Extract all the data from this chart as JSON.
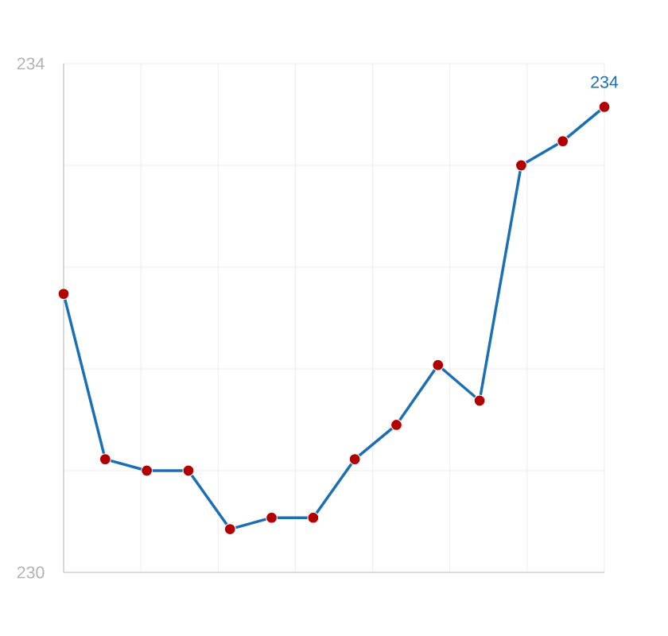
{
  "chart_data": {
    "type": "line",
    "categories": [
      null,
      null,
      null,
      null,
      null,
      null,
      null,
      null,
      null,
      null,
      null,
      null,
      null,
      null
    ],
    "series": [
      {
        "color": "#1a6fb5",
        "values": [
          232.19,
          230.89,
          230.8,
          230.8,
          230.34,
          230.43,
          230.43,
          230.89,
          231.16,
          231.63,
          231.35,
          233.2,
          233.39,
          233.66
        ]
      }
    ],
    "ylim": [
      230,
      234
    ],
    "yticks": [
      230,
      {
        "value": 230.8,
        "label": null
      },
      {
        "value": 231.6,
        "label": null
      },
      {
        "value": 232.4,
        "label": null
      },
      {
        "value": 233.2,
        "label": null
      },
      234
    ],
    "annotations": [
      {
        "text": "234",
        "y": 233.66
      }
    ],
    "grid": true,
    "marker": "circle",
    "line_style": "solid"
  }
}
